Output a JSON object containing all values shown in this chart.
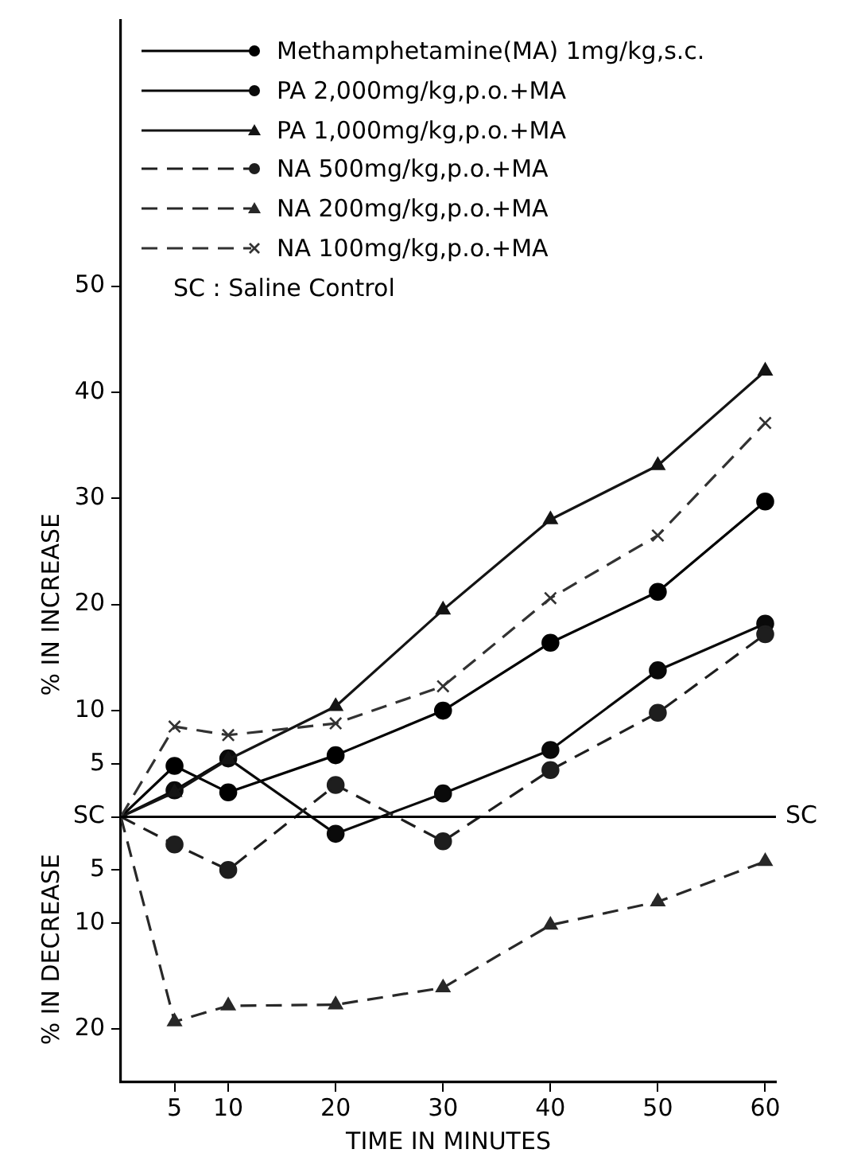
{
  "chart_data": {
    "type": "line",
    "xlabel": "TIME IN MINUTES",
    "ylabel": "% IN INCREASE",
    "x": [
      0,
      5,
      10,
      20,
      30,
      40,
      50,
      60
    ],
    "xlim": [
      0,
      61
    ],
    "xticks": [
      5,
      10,
      20,
      30,
      40,
      50,
      60
    ],
    "ylim": [
      -25,
      75
    ],
    "yticks": [
      50,
      40,
      30,
      20,
      10,
      5,
      {
        "value": 0,
        "label": "SC"
      },
      {
        "value": -5,
        "label": "5"
      },
      {
        "value": -10,
        "label": "10"
      },
      {
        "value": -20,
        "label": "20"
      }
    ],
    "grid": false,
    "legend": "top left",
    "series": [
      {
        "name": "Methamphetamine(MA) 1mg/kg,s.c.",
        "color": "#000000",
        "line_style": "solid",
        "marker": "circle",
        "values": [
          0,
          4.8,
          2.3,
          5.8,
          10,
          16.4,
          21.2,
          29.7
        ]
      },
      {
        "name": "PA 2,000mg/kg,p.o.+MA",
        "color": "#0a0a0a",
        "line_style": "solid",
        "marker": "circle",
        "values": [
          0,
          2.5,
          5.5,
          -1.6,
          2.2,
          6.3,
          13.8,
          18.2
        ]
      },
      {
        "name": "PA 1,000mg/kg,p.o.+MA",
        "color": "#141414",
        "line_style": "solid",
        "marker": "triangle",
        "values": [
          0,
          2.3,
          5.4,
          10.4,
          19.5,
          28,
          33.1,
          42
        ]
      },
      {
        "name": "NA 500mg/kg,p.o.+MA",
        "color": "#1e1e1e",
        "line_style": "dashed",
        "marker": "circle",
        "values": [
          0,
          -2.6,
          -5,
          3,
          -2.3,
          4.4,
          9.8,
          17.2
        ]
      },
      {
        "name": "NA 200mg/kg,p.o.+MA",
        "color": "#282828",
        "line_style": "dashed",
        "marker": "triangle",
        "values": [
          0,
          -19.3,
          -17.8,
          -17.7,
          -16.1,
          -10.2,
          -8,
          -4.2
        ]
      },
      {
        "name": "NA 100mg/kg,p.o.+MA",
        "color": "#323232",
        "line_style": "dashed",
        "marker": "cross",
        "values": [
          0,
          8.5,
          7.7,
          8.8,
          12.3,
          20.6,
          26.5,
          37.1
        ]
      }
    ],
    "ref_lines": [
      {
        "axis": "y",
        "value": 0,
        "label": "SC"
      }
    ],
    "annotations": [
      "SC : Saline Control",
      "% IN DECREASE"
    ]
  }
}
